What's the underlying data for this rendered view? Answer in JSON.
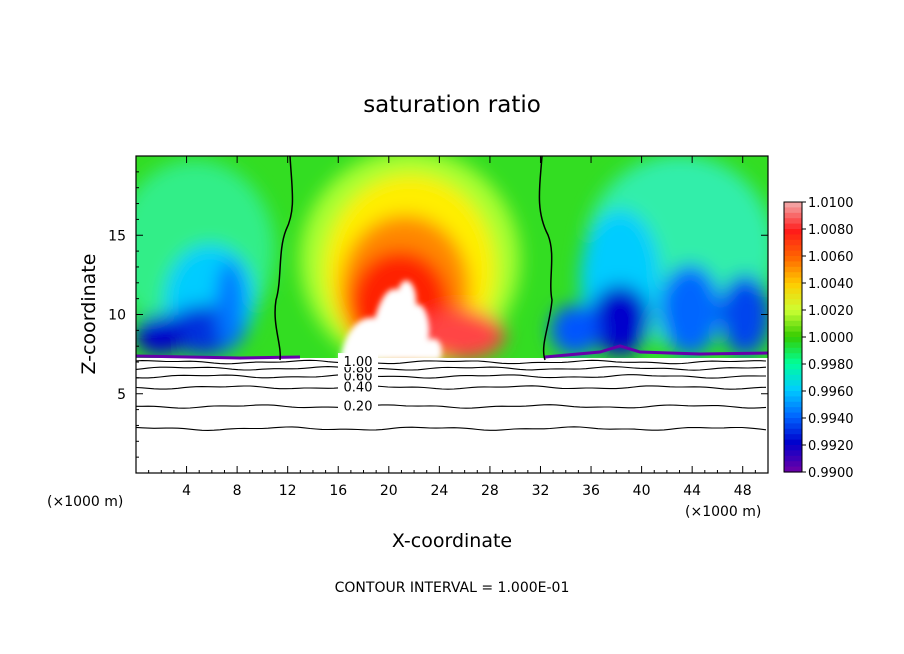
{
  "chart_data": {
    "type": "heatmap",
    "title": "saturation ratio",
    "xlabel": "X-coordinate",
    "ylabel": "Z-coordinate",
    "x_unit_label": "(×1000 m)",
    "footer": "CONTOUR INTERVAL = 1.000E-01",
    "xlim": [
      0,
      50
    ],
    "ylim": [
      0,
      20
    ],
    "x_ticks": [
      4,
      8,
      12,
      16,
      20,
      24,
      28,
      32,
      36,
      40,
      44,
      48
    ],
    "x_tick_labels": [
      "4",
      "8",
      "12",
      "16",
      "20",
      "24",
      "28",
      "32",
      "36",
      "40",
      "44",
      "48"
    ],
    "y_ticks": [
      5,
      10,
      15
    ],
    "y_tick_labels": [
      "5",
      "10",
      "15"
    ],
    "colorbar": {
      "min": 0.99,
      "max": 1.01,
      "tick_labels": [
        "1.0100",
        "1.0080",
        "1.0060",
        "1.0040",
        "1.0020",
        "1.0000",
        "0.9980",
        "0.9960",
        "0.9940",
        "0.9920",
        "0.9900"
      ],
      "colors": [
        "#f4a0a0",
        "#ff1a1a",
        "#ff6600",
        "#ffcc00",
        "#ccff33",
        "#33cc00",
        "#00ff99",
        "#00ccff",
        "#0066ff",
        "#0000cc",
        "#6600aa"
      ]
    },
    "contour_lines": [
      {
        "level": 0.2,
        "z": 4.2,
        "label": "0.20"
      },
      {
        "level": 0.4,
        "z": 5.4,
        "label": "0.40"
      },
      {
        "level": 0.6,
        "z": 6.1,
        "label": "0.60"
      },
      {
        "level": 0.8,
        "z": 6.6,
        "label": "0.80"
      },
      {
        "level": 1.0,
        "z": 7.0,
        "label": "1.00"
      },
      {
        "level": 0.0,
        "z": 2.8,
        "label": ""
      }
    ],
    "saturated_boundaries_x": [
      12.0,
      32.0
    ],
    "cloud_base_z": 7.2
  }
}
